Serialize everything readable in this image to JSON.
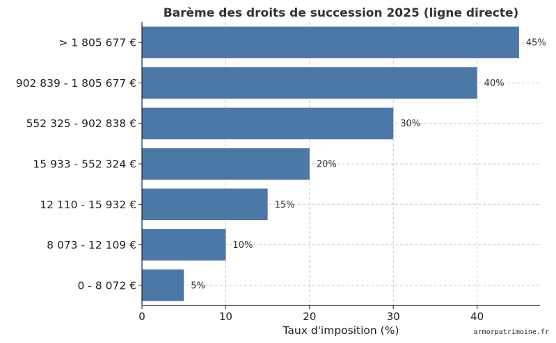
{
  "chart_data": {
    "type": "bar",
    "orientation": "horizontal",
    "title": "Barème des droits de succession 2025 (ligne directe)",
    "xlabel": "Taux d'imposition (%)",
    "ylabel": "",
    "xlim": [
      0,
      47.5
    ],
    "xticks": [
      0,
      10,
      20,
      30,
      40
    ],
    "grid": true,
    "categories": [
      "0 - 8 072 €",
      "8 073 - 12 109 €",
      "12 110 - 15 932 €",
      "15 933 - 552 324 €",
      "552 325 - 902 838 €",
      "902 839 - 1 805 677 €",
      "> 1 805 677 €"
    ],
    "values": [
      5,
      10,
      15,
      20,
      30,
      40,
      45
    ],
    "data_labels": [
      "5%",
      "10%",
      "15%",
      "20%",
      "30%",
      "40%",
      "45%"
    ],
    "bar_color": "#4c78a8"
  },
  "watermark": "armorpatrimoine.fr"
}
